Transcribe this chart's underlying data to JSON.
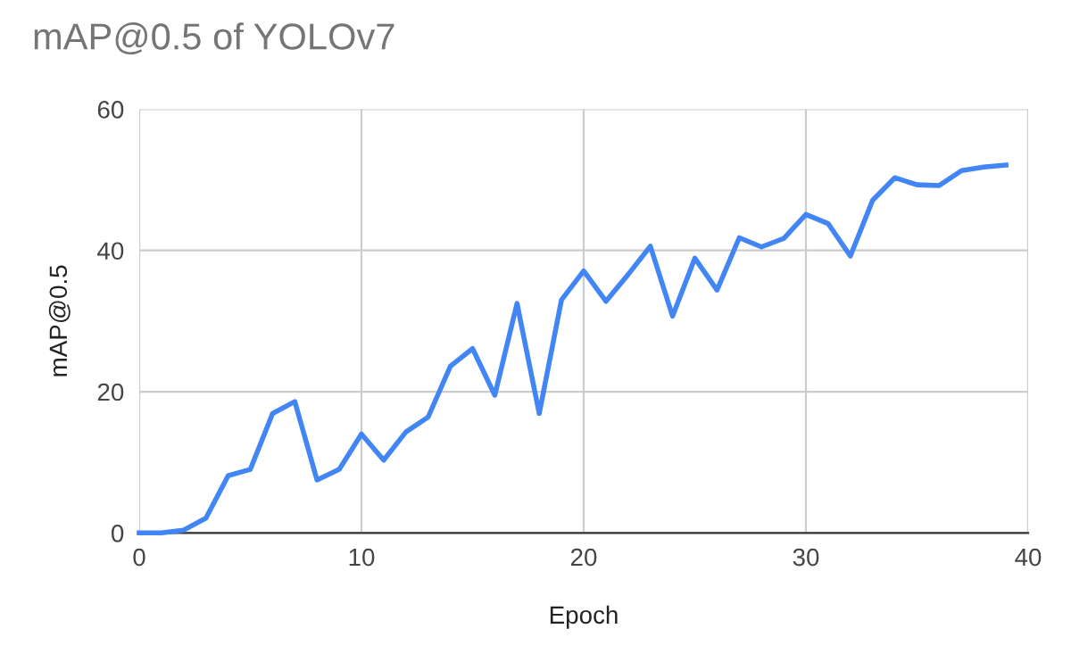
{
  "chart_data": {
    "type": "line",
    "title": "mAP@0.5 of YOLOv7",
    "xlabel": "Epoch",
    "ylabel": "mAP@0.5",
    "x": [
      0,
      1,
      2,
      3,
      4,
      5,
      6,
      7,
      8,
      9,
      10,
      11,
      12,
      13,
      14,
      15,
      16,
      17,
      18,
      19,
      20,
      21,
      22,
      23,
      24,
      25,
      26,
      27,
      28,
      29,
      30,
      31,
      32,
      33,
      34,
      35,
      36,
      37,
      38,
      39
    ],
    "series": [
      {
        "color": "#4285f4",
        "values": [
          0,
          0,
          0.4,
          2.1,
          8.1,
          9,
          16.9,
          18.6,
          7.5,
          9,
          14,
          10.3,
          14.3,
          16.4,
          23.6,
          26.1,
          19.5,
          32.5,
          16.9,
          33,
          37.1,
          32.8,
          36.6,
          40.6,
          30.7,
          38.9,
          34.4,
          41.8,
          40.5,
          41.7,
          45.1,
          43.8,
          39.2,
          47.1,
          50.3,
          49.3,
          49.2,
          51.3,
          51.8,
          52.1
        ]
      }
    ],
    "xlim": [
      0,
      40
    ],
    "ylim": [
      0,
      60
    ],
    "xticks": [
      0,
      10,
      20,
      30,
      40
    ],
    "yticks": [
      0,
      20,
      40,
      60
    ],
    "grid": true,
    "marker": "none",
    "line_style": "solid",
    "legend": false
  }
}
